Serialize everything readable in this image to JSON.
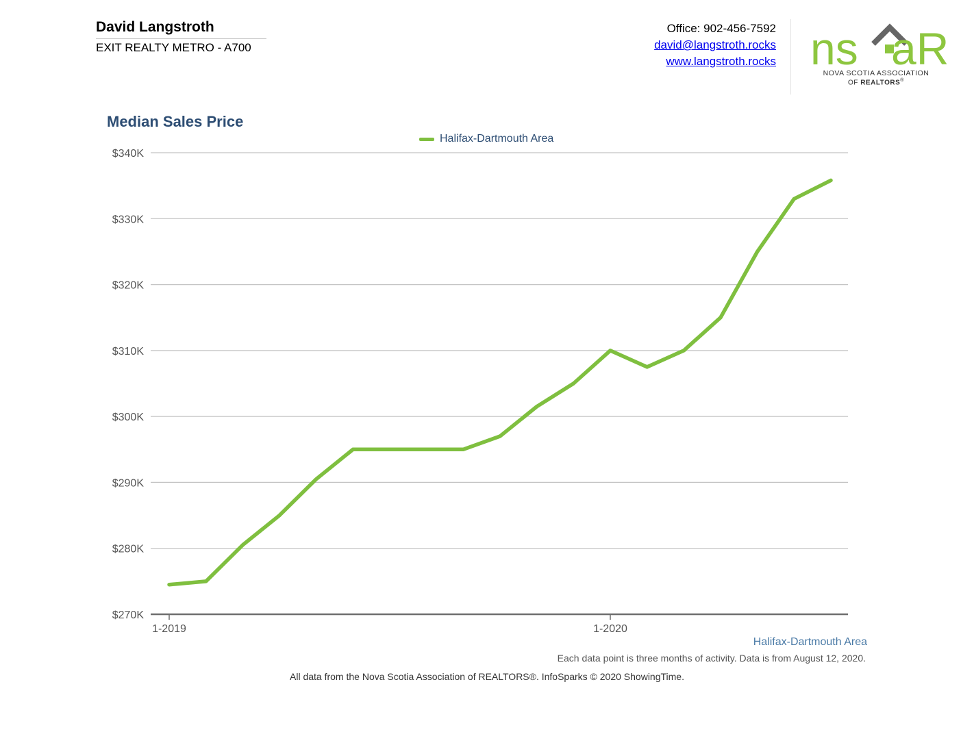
{
  "header": {
    "agent_name": "David Langstroth",
    "agent_company": "EXIT REALTY METRO - A700",
    "office": "Office: 902-456-7592",
    "email": "david@langstroth.rocks",
    "website": "www.langstroth.rocks"
  },
  "logo": {
    "mark_left": "ns",
    "mark_right": "aR",
    "line1": "NOVA SCOTIA ASSOCIATION",
    "line2_prefix": "OF ",
    "line2_bold": "REALTORS",
    "line2_suffix": "®",
    "green": "#8dc63f",
    "grey": "#666666"
  },
  "footer": {
    "area": "Halifax-Dartmouth Area",
    "note": "Each data point is three months of activity. Data is from August 12, 2020.",
    "source": "All data from the Nova Scotia Association of REALTORS®. InfoSparks © 2020 ShowingTime."
  },
  "chart_data": {
    "type": "line",
    "title": "Median Sales Price",
    "xlabel": "",
    "ylabel": "",
    "ylim": [
      270000,
      340000
    ],
    "yticks": [
      340000,
      330000,
      320000,
      310000,
      300000,
      290000,
      280000,
      270000
    ],
    "ytick_labels": [
      "$340K",
      "$330K",
      "$320K",
      "$310K",
      "$300K",
      "$290K",
      "$280K",
      "$270K"
    ],
    "xticks": [
      {
        "index": 0,
        "label": "1-2019"
      },
      {
        "index": 12,
        "label": "1-2020"
      }
    ],
    "grid": true,
    "legend": "top-center",
    "series": [
      {
        "name": "Halifax-Dartmouth Area",
        "color": "#7fbf3f",
        "values": [
          274500,
          275000,
          280500,
          285000,
          290500,
          295000,
          295000,
          295000,
          295000,
          297000,
          301500,
          305000,
          310000,
          307500,
          310000,
          315000,
          325000,
          333000,
          335800
        ]
      }
    ]
  }
}
